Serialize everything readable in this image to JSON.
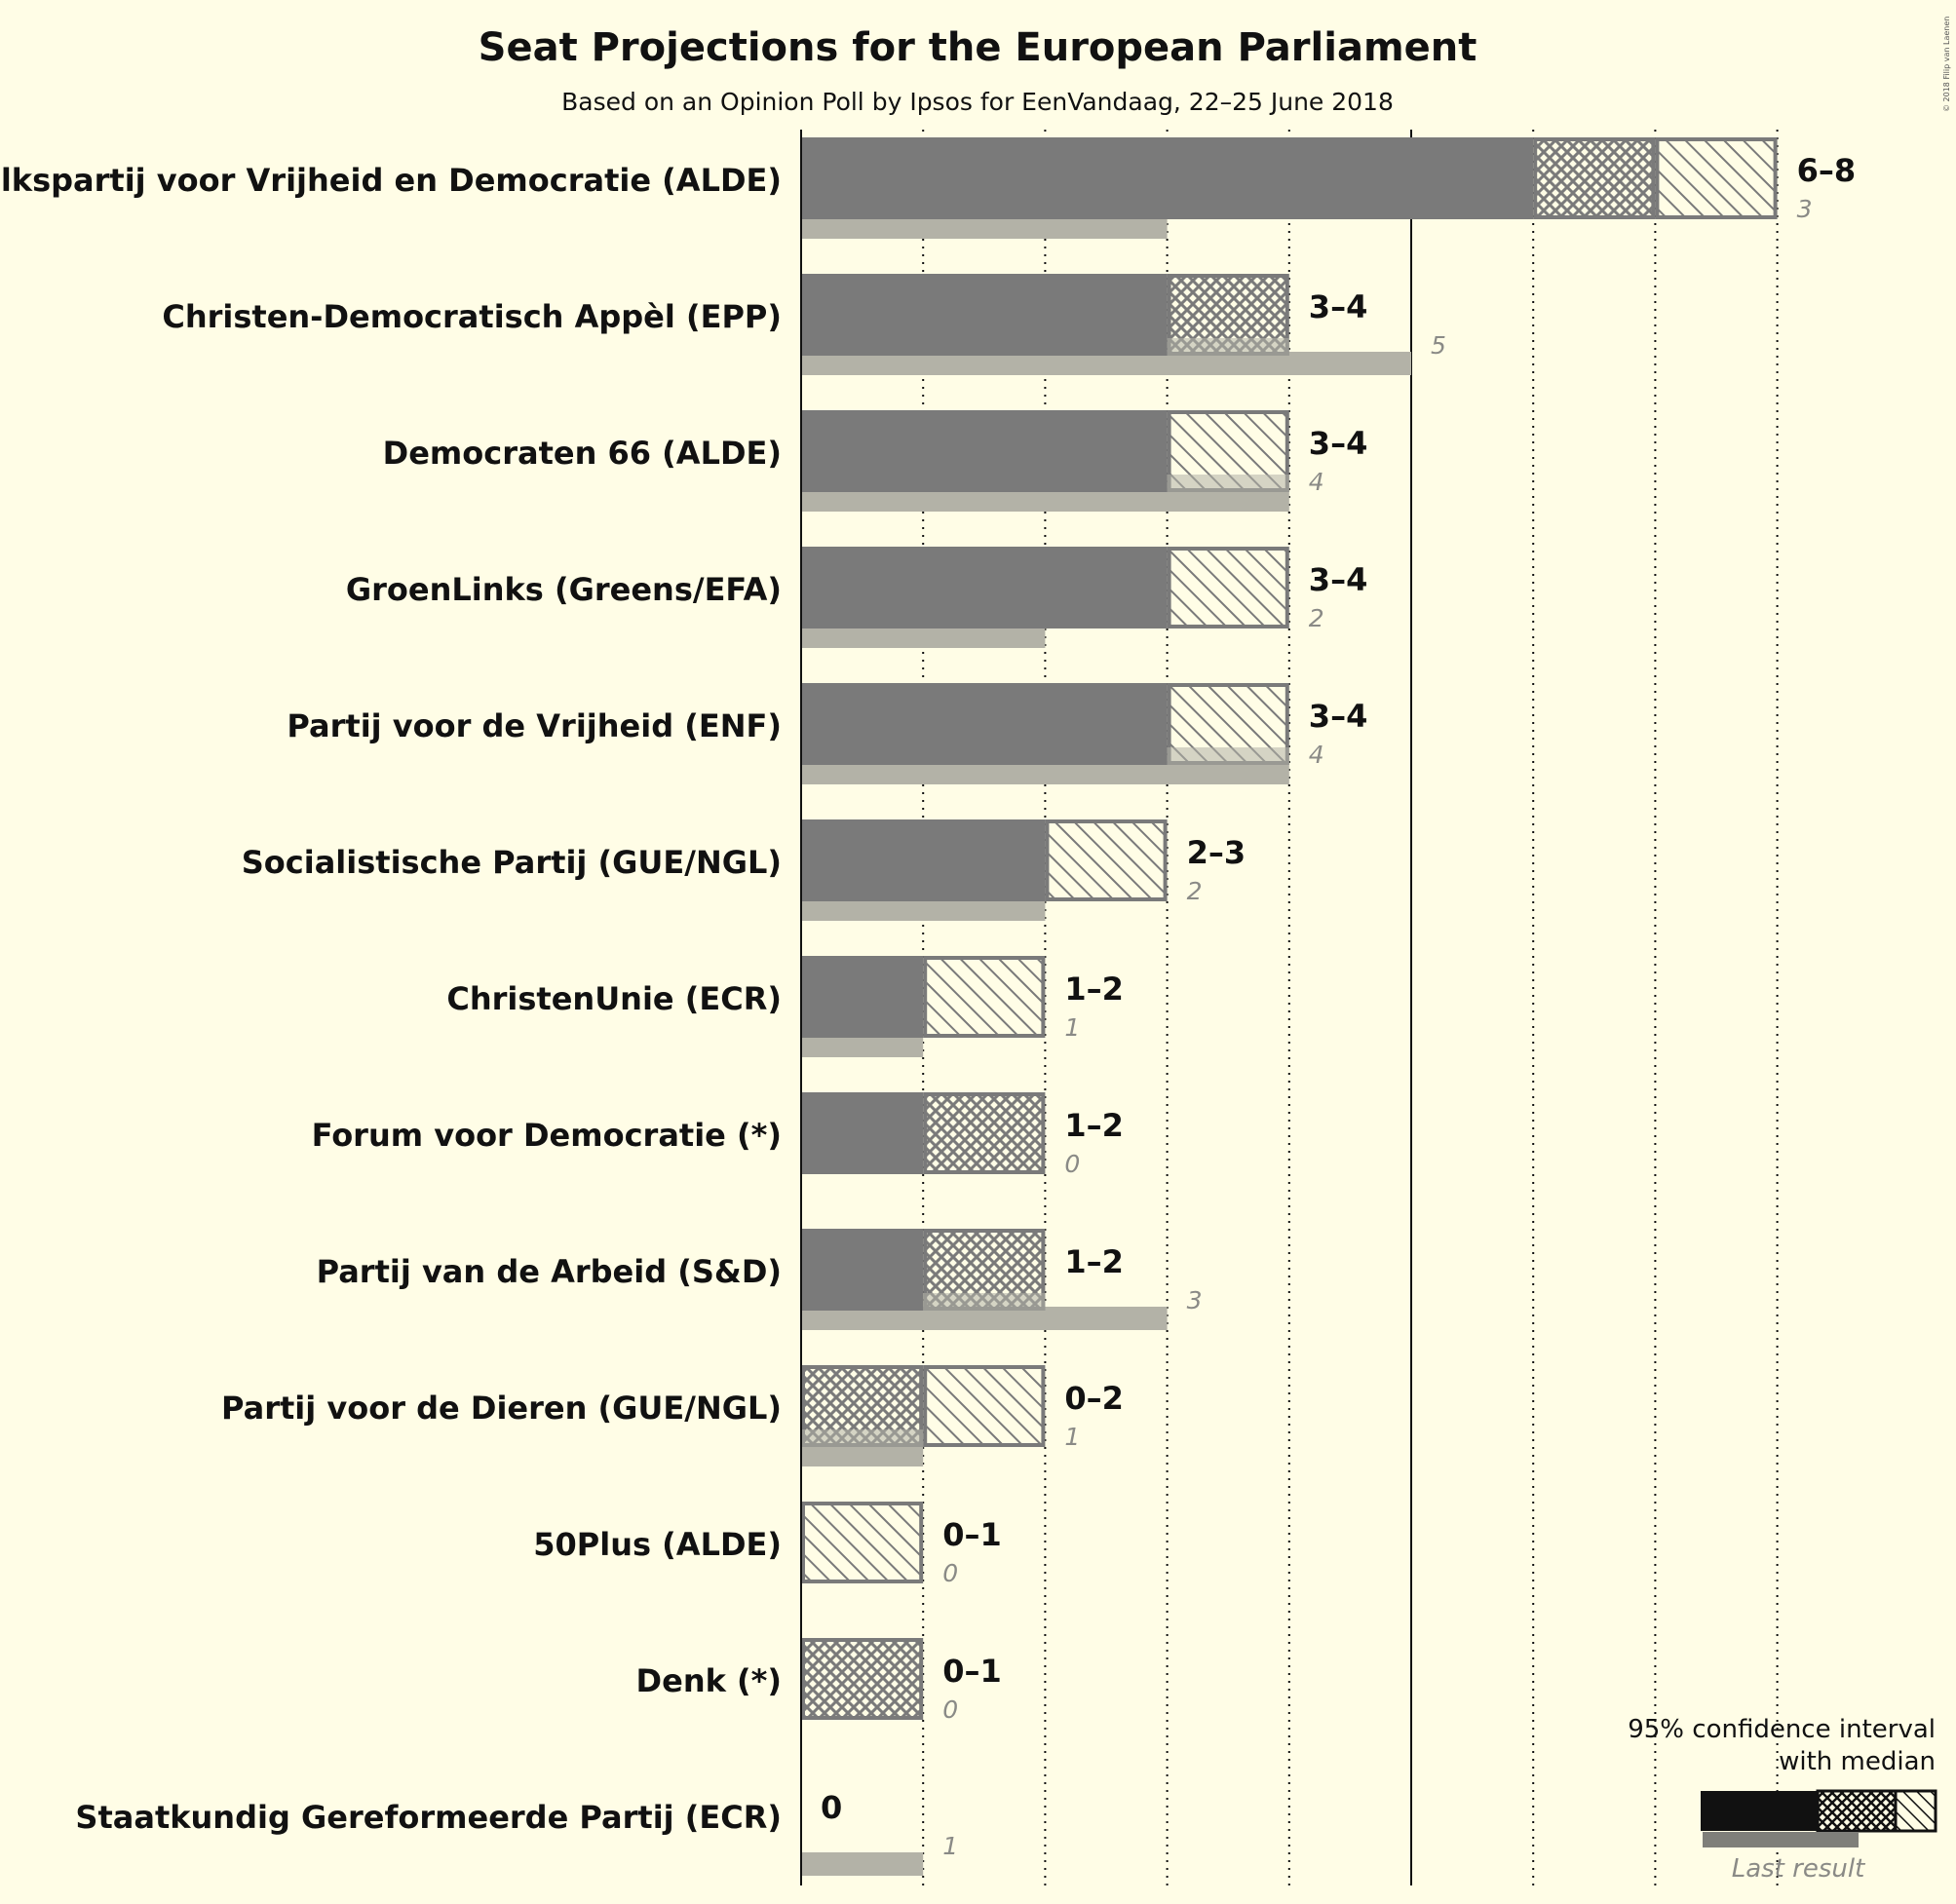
{
  "chart_data": {
    "type": "bar",
    "orientation": "horizontal",
    "title": "Seat Projections for the European Parliament",
    "subtitle": "Based on an Opinion Poll by Ipsos for EenVandaag, 22–25 June 2018",
    "copyright": "© 2018 Filip van Laenen",
    "xlim": [
      0,
      8
    ],
    "gridlines": [
      1,
      2,
      3,
      4,
      6,
      7,
      8
    ],
    "majorline": 5,
    "parties": [
      {
        "name": "Volkspartij voor Vrijheid en Democratie (ALDE)",
        "low": 6,
        "median": 7,
        "high": 8,
        "range_label": "6–8",
        "last": 3,
        "last_label": "3"
      },
      {
        "name": "Christen-Democratisch Appèl (EPP)",
        "low": 3,
        "median": 4,
        "high": 4,
        "range_label": "3–4",
        "last": 5,
        "last_label": "5"
      },
      {
        "name": "Democraten 66 (ALDE)",
        "low": 3,
        "median": 3,
        "high": 4,
        "range_label": "3–4",
        "last": 4,
        "last_label": "4"
      },
      {
        "name": "GroenLinks (Greens/EFA)",
        "low": 3,
        "median": 3,
        "high": 4,
        "range_label": "3–4",
        "last": 2,
        "last_label": "2"
      },
      {
        "name": "Partij voor de Vrijheid (ENF)",
        "low": 3,
        "median": 3,
        "high": 4,
        "range_label": "3–4",
        "last": 4,
        "last_label": "4"
      },
      {
        "name": "Socialistische Partij (GUE/NGL)",
        "low": 2,
        "median": 2,
        "high": 3,
        "range_label": "2–3",
        "last": 2,
        "last_label": "2"
      },
      {
        "name": "ChristenUnie (ECR)",
        "low": 1,
        "median": 1,
        "high": 2,
        "range_label": "1–2",
        "last": 1,
        "last_label": "1"
      },
      {
        "name": "Forum voor Democratie (*)",
        "low": 1,
        "median": 2,
        "high": 2,
        "range_label": "1–2",
        "last": 0,
        "last_label": "0"
      },
      {
        "name": "Partij van de Arbeid (S&D)",
        "low": 1,
        "median": 2,
        "high": 2,
        "range_label": "1–2",
        "last": 3,
        "last_label": "3"
      },
      {
        "name": "Partij voor de Dieren (GUE/NGL)",
        "low": 0,
        "median": 1,
        "high": 2,
        "range_label": "0–2",
        "last": 1,
        "last_label": "1"
      },
      {
        "name": "50Plus (ALDE)",
        "low": 0,
        "median": 0,
        "high": 1,
        "range_label": "0–1",
        "last": 0,
        "last_label": "0"
      },
      {
        "name": "Denk (*)",
        "low": 0,
        "median": 1,
        "high": 1,
        "range_label": "0–1",
        "last": 0,
        "last_label": "0"
      },
      {
        "name": "Staatkundig Gereformeerde Partij (ECR)",
        "low": 0,
        "median": 0,
        "high": 0,
        "range_label": "0",
        "last": 1,
        "last_label": "1"
      }
    ],
    "legend": {
      "line1": "95% confidence interval",
      "line2": "with median",
      "last_result": "Last result",
      "placement": "bottom-right"
    },
    "colors": {
      "background": "#fffde6",
      "bar": "#7a7a7a",
      "last_result": "#b3b2a7",
      "outline": "#7a7a7a",
      "legend_bar": "#111111",
      "legend_last": "#7f7f7a"
    }
  }
}
